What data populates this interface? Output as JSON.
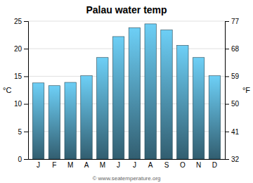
{
  "chart_data": {
    "type": "bar",
    "title": "Palau water temp",
    "categories": [
      "J",
      "F",
      "M",
      "A",
      "M",
      "J",
      "J",
      "A",
      "S",
      "O",
      "N",
      "D"
    ],
    "values": [
      13.8,
      13.3,
      13.9,
      15.1,
      18.4,
      22.2,
      23.8,
      24.5,
      23.4,
      20.6,
      18.4,
      15.1
    ],
    "color": "#6dcff6",
    "ylim": [
      0,
      25
    ],
    "yticks": [
      0,
      5,
      10,
      15,
      20,
      25
    ],
    "y2lim": [
      32,
      77
    ],
    "y2ticks": [
      32,
      41,
      50,
      59,
      68,
      77
    ],
    "ylabel": "°C",
    "y2label": "°F",
    "grid": true,
    "watermark": "© www.seatemperature.org"
  }
}
